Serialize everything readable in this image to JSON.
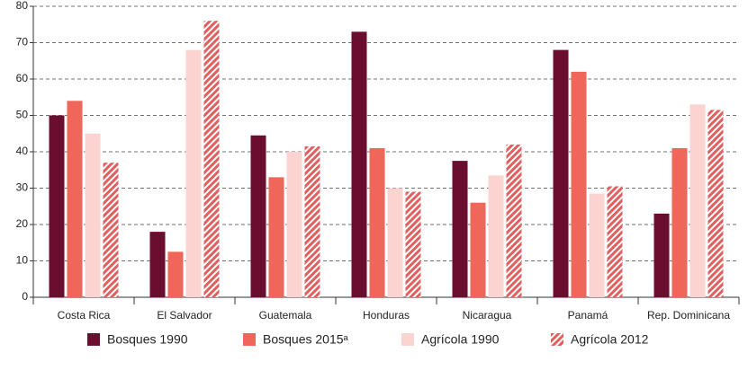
{
  "chart_data": {
    "type": "bar",
    "categories": [
      "Costa Rica",
      "El Salvador",
      "Guatemala",
      "Honduras",
      "Nicaragua",
      "Panamá",
      "Rep. Dominicana"
    ],
    "series": [
      {
        "name": "Bosques 1990",
        "color": "#6b0d2e",
        "values": [
          50,
          18,
          44.5,
          73,
          37.5,
          68,
          23
        ]
      },
      {
        "name": "Bosques 2015ᵃ",
        "color": "#f0665a",
        "values": [
          54,
          12.5,
          33,
          41,
          26,
          62,
          41
        ]
      },
      {
        "name": "Agrícola 1990",
        "color": "#fbd3d1",
        "values": [
          45,
          68,
          40,
          30,
          33.5,
          28.5,
          53
        ]
      },
      {
        "name": "Agrícola 2012",
        "color": "#e06060",
        "hatch": true,
        "values": [
          37,
          76,
          41.5,
          29,
          42,
          30.5,
          51.5
        ]
      }
    ],
    "ylim": [
      0,
      80
    ],
    "yticks": [
      0,
      10,
      20,
      30,
      40,
      50,
      60,
      70,
      80
    ],
    "grid": true,
    "legend": "bottom"
  }
}
